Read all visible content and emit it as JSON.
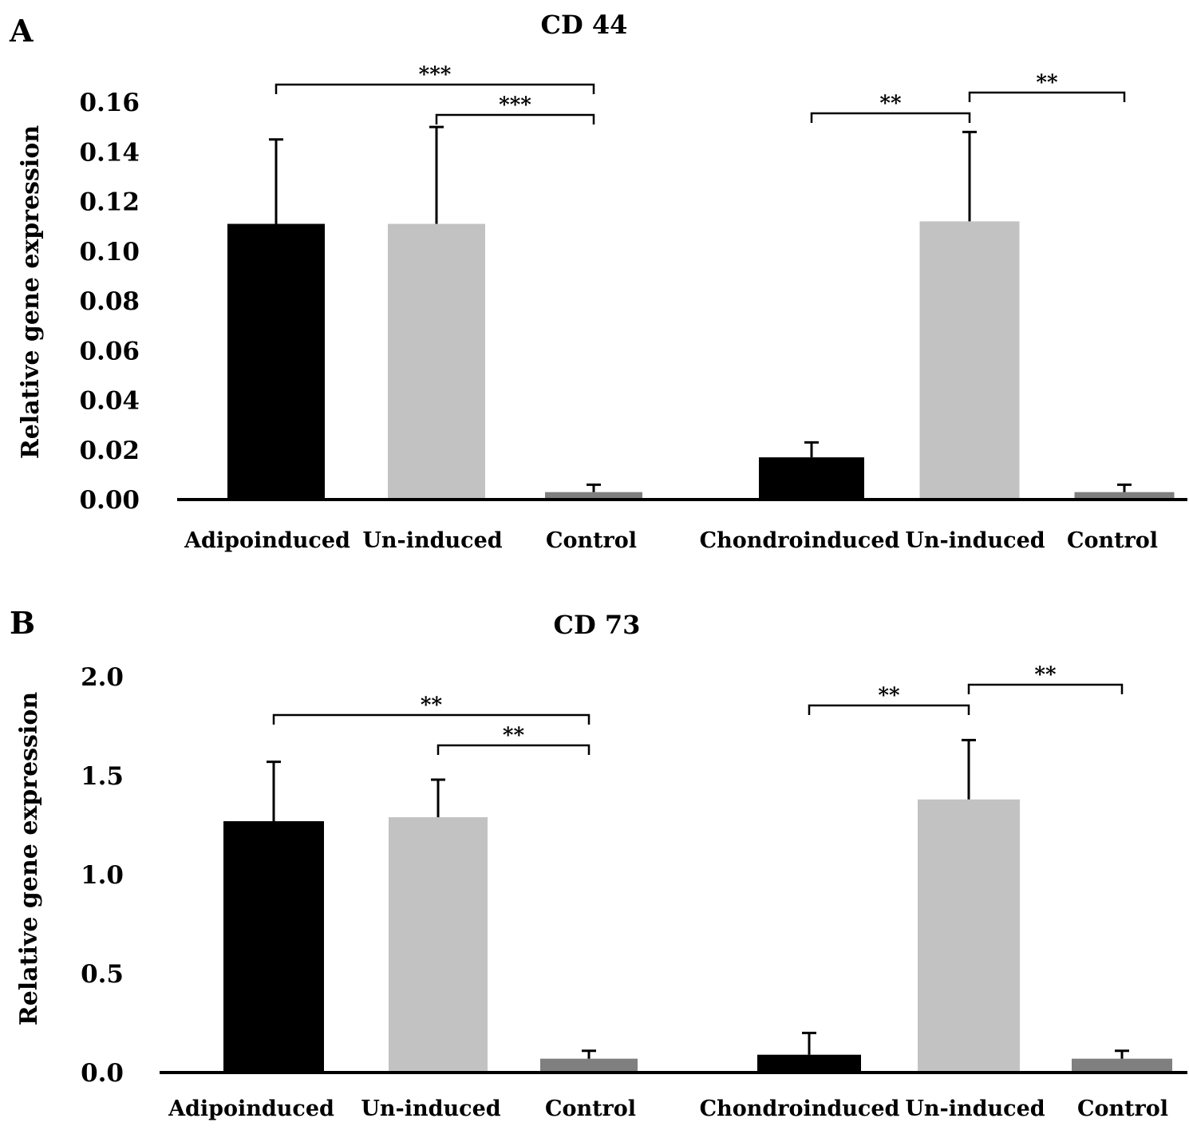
{
  "chart_data": [
    {
      "type": "bar",
      "panel": "A",
      "title": "CD 44",
      "xlabel": "",
      "ylabel": "Relative gene expression",
      "ylim": [
        0,
        0.16
      ],
      "yticks": [
        "0.00",
        "0.02",
        "0.04",
        "0.06",
        "0.08",
        "0.10",
        "0.12",
        "0.14",
        "0.16"
      ],
      "categories": [
        "Adipoinduced",
        "Un-induced",
        "Control",
        "Chondroinduced",
        "Un-induced",
        "Control"
      ],
      "values": [
        0.111,
        0.111,
        0.003,
        0.017,
        0.112,
        0.003
      ],
      "errors": [
        0.034,
        0.039,
        0.003,
        0.006,
        0.036,
        0.003
      ],
      "colors": [
        "#000000",
        "#c2c2c2",
        "#7f7f7f",
        "#000000",
        "#c2c2c2",
        "#7f7f7f"
      ],
      "significance": [
        {
          "from": 0,
          "to": 2,
          "label": "***"
        },
        {
          "from": 1,
          "to": 2,
          "label": "***"
        },
        {
          "from": 3,
          "to": 4,
          "label": "**"
        },
        {
          "from": 4,
          "to": 5,
          "label": "**"
        }
      ]
    },
    {
      "type": "bar",
      "panel": "B",
      "title": "CD 73",
      "xlabel": "",
      "ylabel": "Relative gene expression",
      "ylim": [
        0,
        2.0
      ],
      "yticks": [
        "0.0",
        "0.5",
        "1.0",
        "1.5",
        "2.0"
      ],
      "categories": [
        "Adipoinduced",
        "Un-induced",
        "Control",
        "Chondroinduced",
        "Un-induced",
        "Control"
      ],
      "values": [
        1.27,
        1.29,
        0.07,
        0.09,
        1.38,
        0.07
      ],
      "errors": [
        0.3,
        0.19,
        0.04,
        0.11,
        0.3,
        0.04
      ],
      "colors": [
        "#000000",
        "#c2c2c2",
        "#7f7f7f",
        "#000000",
        "#c2c2c2",
        "#7f7f7f"
      ],
      "significance": [
        {
          "from": 0,
          "to": 2,
          "label": "**"
        },
        {
          "from": 1,
          "to": 2,
          "label": "**"
        },
        {
          "from": 3,
          "to": 4,
          "label": "**"
        },
        {
          "from": 4,
          "to": 5,
          "label": "**"
        }
      ]
    }
  ]
}
